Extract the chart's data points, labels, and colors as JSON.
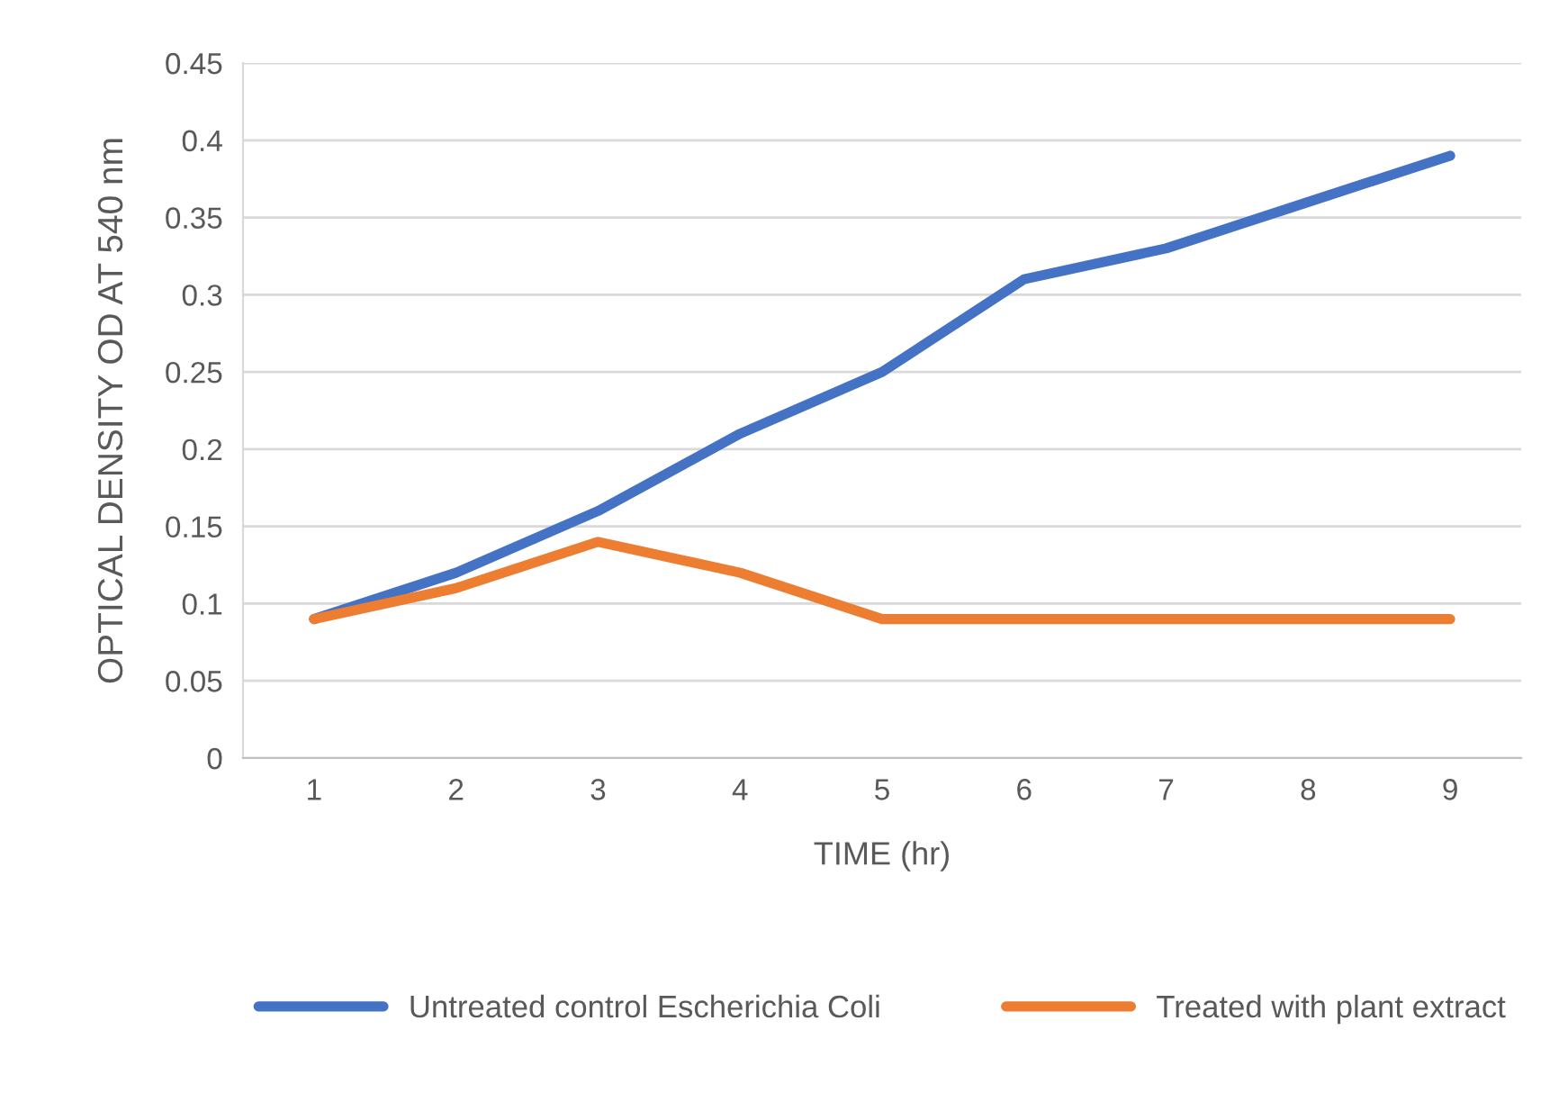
{
  "chart_data": {
    "type": "line",
    "xlabel": "TIME (hr)",
    "ylabel": "OPTICAL DENSITY OD AT 540 nm",
    "categories": [
      "1",
      "2",
      "3",
      "4",
      "5",
      "6",
      "7",
      "8",
      "9"
    ],
    "series": [
      {
        "name": "Untreated control Escherichia Coli",
        "color": "#4472c4",
        "values": [
          0.09,
          0.12,
          0.16,
          0.21,
          0.25,
          0.31,
          0.33,
          0.36,
          0.39
        ]
      },
      {
        "name": "Treated with plant extract",
        "color": "#ed7d31",
        "values": [
          0.09,
          0.11,
          0.14,
          0.12,
          0.09,
          0.09,
          0.09,
          0.09,
          0.09
        ]
      }
    ],
    "ylim": [
      0,
      0.45
    ],
    "yticks": [
      0,
      0.05,
      0.1,
      0.15,
      0.2,
      0.25,
      0.3,
      0.35,
      0.4,
      0.45
    ],
    "grid": "y",
    "legend": "bottom",
    "marker": "none",
    "line_style": "solid"
  }
}
